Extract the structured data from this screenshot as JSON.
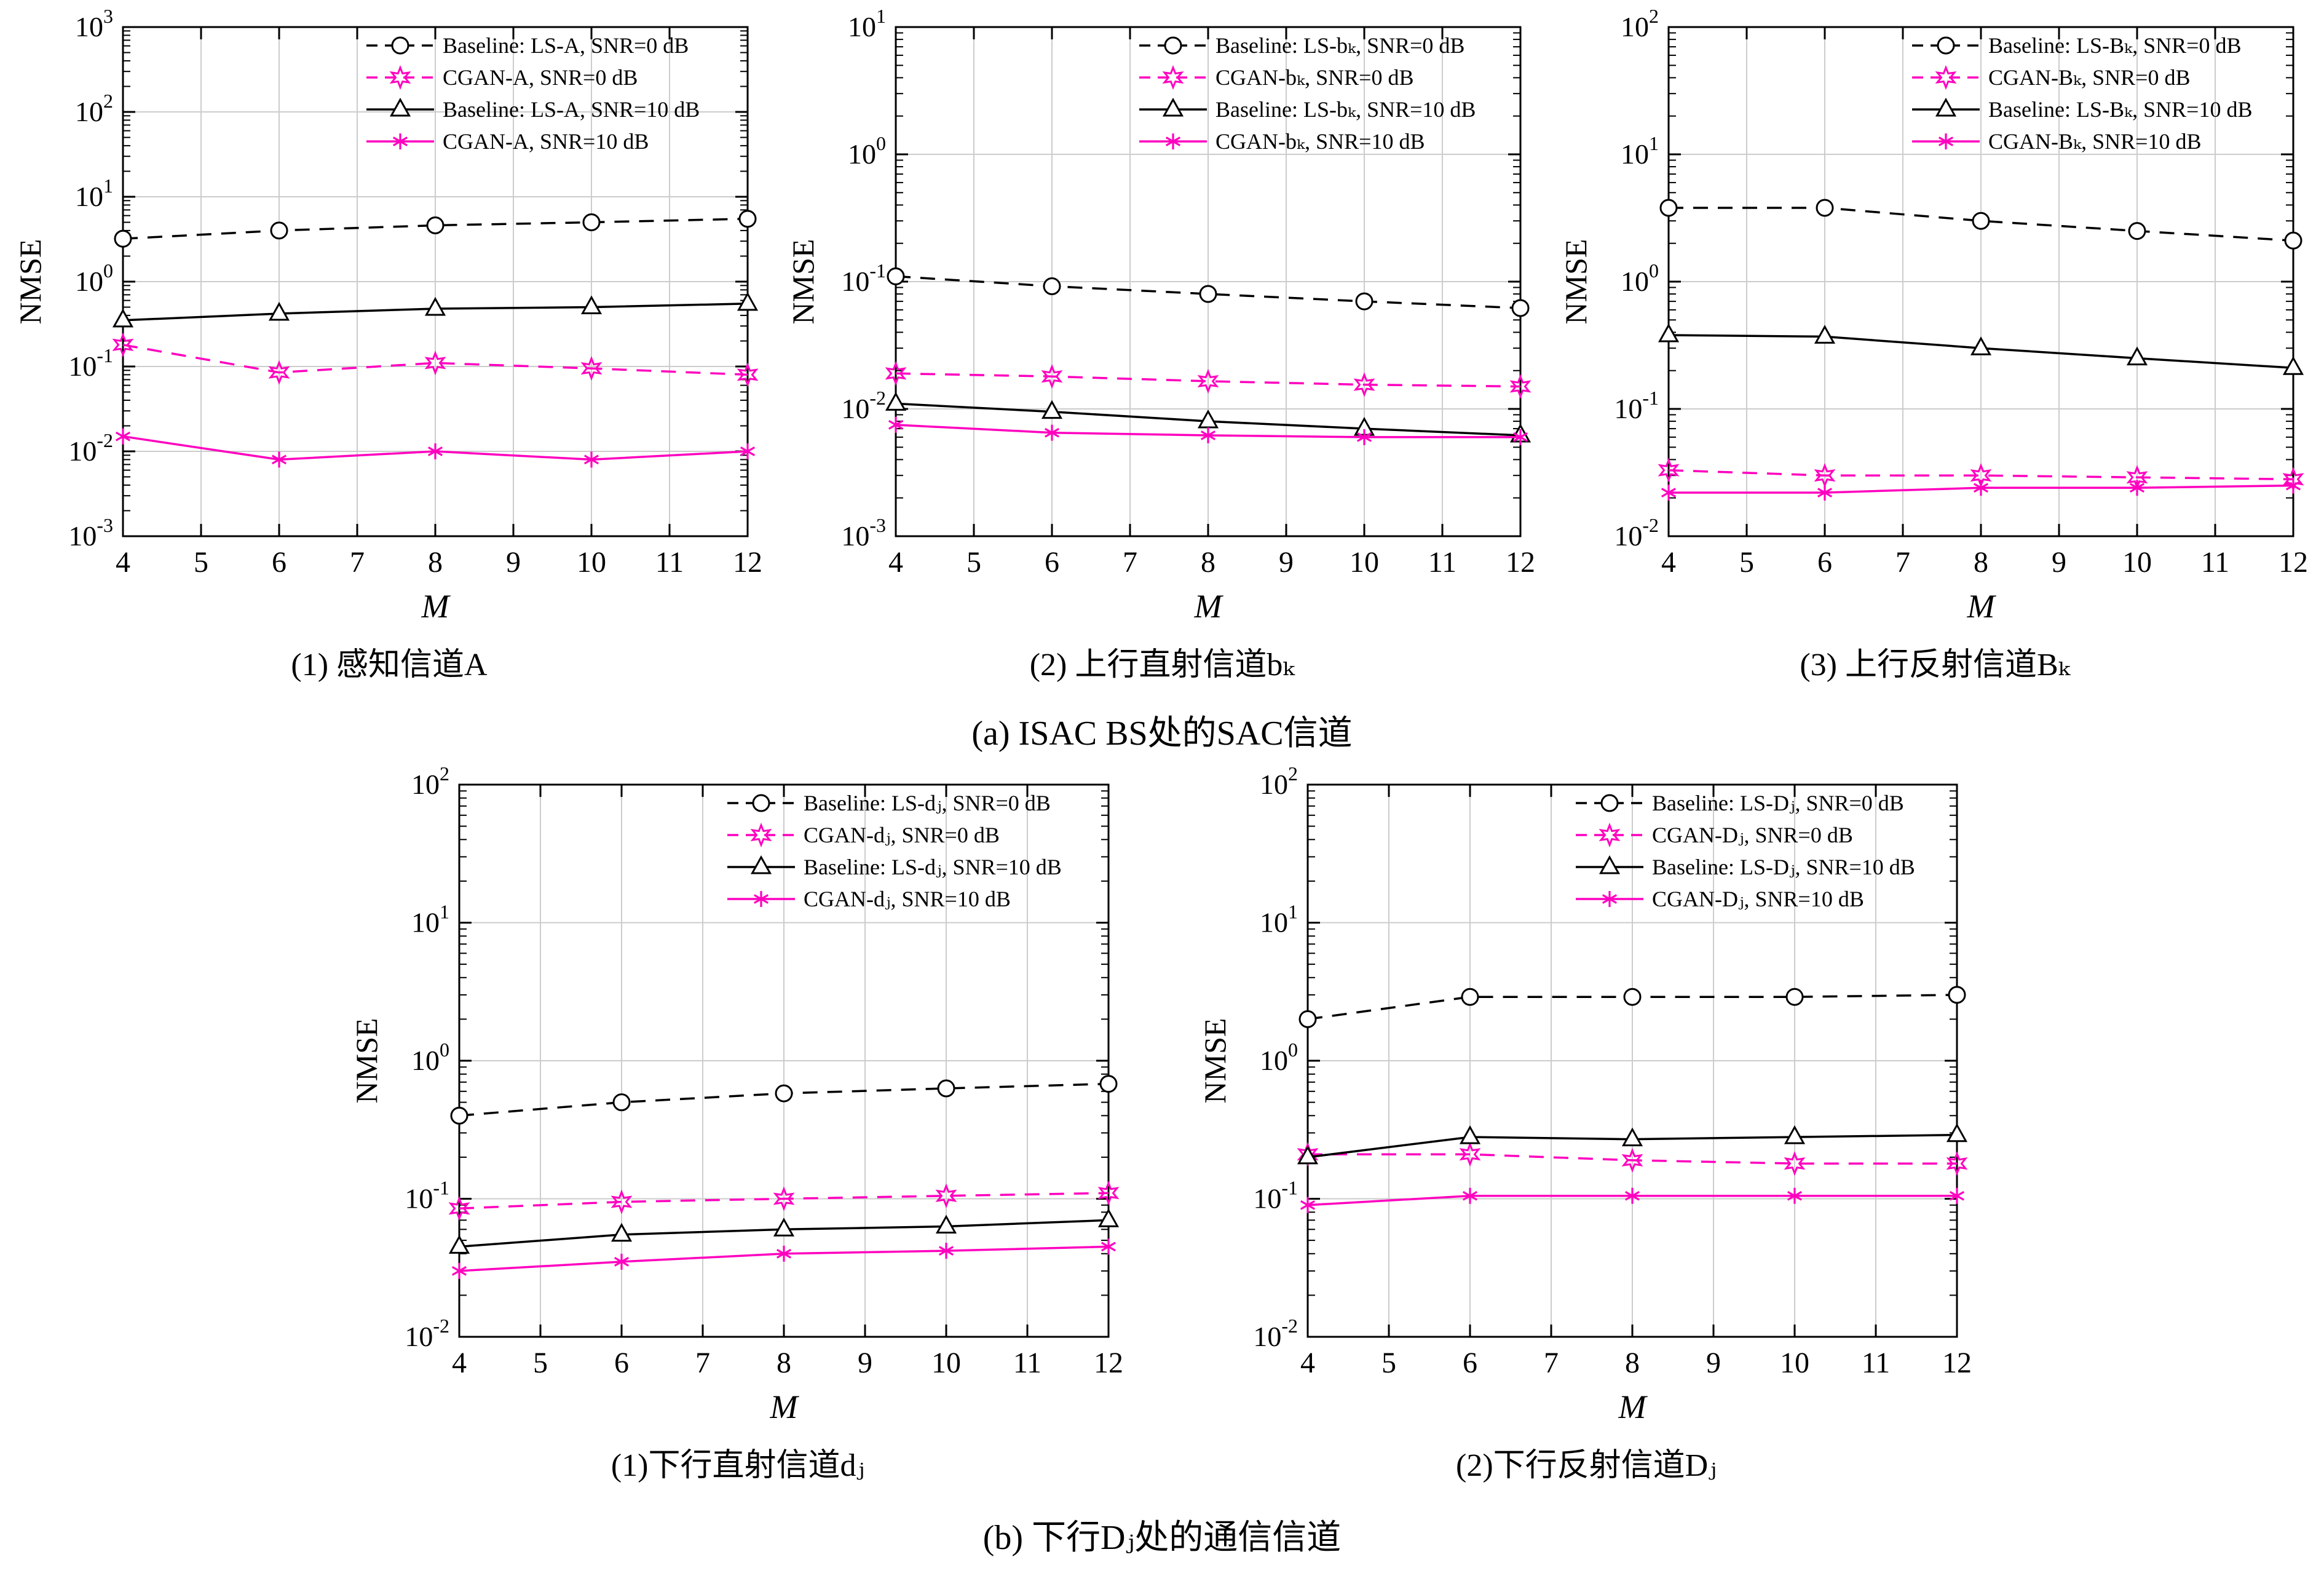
{
  "figure": {
    "caption_a": "(a) ISAC BS处的SAC信道",
    "caption_b": "(b) 下行Dⱼ处的通信信道"
  },
  "colors": {
    "baseline": "#000000",
    "cgan": "#ff00bf",
    "grid": "#cccccc"
  },
  "chart_data": [
    {
      "type": "line",
      "caption": "(1) 感知信道A",
      "xlabel": "M",
      "ylabel": "NMSE",
      "xlim": [
        4,
        12
      ],
      "xticks": [
        4,
        5,
        6,
        7,
        8,
        9,
        10,
        11,
        12
      ],
      "x": [
        4,
        6,
        8,
        10,
        12
      ],
      "yscale": "log",
      "ylim": [
        0.001,
        1000
      ],
      "ylim_exp": [
        -3,
        3
      ],
      "grid": true,
      "legend_position": "top-right",
      "series": [
        {
          "name": "Baseline: LS-A, SNR=0 dB",
          "color": "#000000",
          "dash": true,
          "marker": "circle",
          "values": [
            3.2,
            4.0,
            4.6,
            5.0,
            5.5
          ]
        },
        {
          "name": "CGAN-A, SNR=0 dB",
          "color": "#ff00bf",
          "dash": true,
          "marker": "hexstar",
          "values": [
            0.18,
            0.085,
            0.11,
            0.095,
            0.08
          ]
        },
        {
          "name": "Baseline: LS-A, SNR=10 dB",
          "color": "#000000",
          "dash": false,
          "marker": "triangle",
          "values": [
            0.35,
            0.42,
            0.48,
            0.5,
            0.55
          ]
        },
        {
          "name": "CGAN-A, SNR=10 dB",
          "color": "#ff00bf",
          "dash": false,
          "marker": "asterisk",
          "values": [
            0.015,
            0.008,
            0.01,
            0.008,
            0.01
          ]
        }
      ]
    },
    {
      "type": "line",
      "caption": "(2) 上行直射信道bₖ",
      "xlabel": "M",
      "ylabel": "NMSE",
      "xlim": [
        4,
        12
      ],
      "xticks": [
        4,
        5,
        6,
        7,
        8,
        9,
        10,
        11,
        12
      ],
      "x": [
        4,
        6,
        8,
        10,
        12
      ],
      "yscale": "log",
      "ylim": [
        0.001,
        10
      ],
      "ylim_exp": [
        -3,
        1
      ],
      "grid": true,
      "legend_position": "top-right",
      "series": [
        {
          "name": "Baseline: LS-bₖ, SNR=0 dB",
          "color": "#000000",
          "dash": true,
          "marker": "circle",
          "values": [
            0.11,
            0.092,
            0.08,
            0.07,
            0.062
          ]
        },
        {
          "name": "CGAN-bₖ, SNR=0 dB",
          "color": "#ff00bf",
          "dash": true,
          "marker": "hexstar",
          "values": [
            0.019,
            0.018,
            0.0165,
            0.0155,
            0.015
          ]
        },
        {
          "name": "Baseline: LS-bₖ, SNR=10 dB",
          "color": "#000000",
          "dash": false,
          "marker": "triangle",
          "values": [
            0.011,
            0.0095,
            0.008,
            0.007,
            0.0062
          ]
        },
        {
          "name": "CGAN-bₖ, SNR=10 dB",
          "color": "#ff00bf",
          "dash": false,
          "marker": "asterisk",
          "values": [
            0.0075,
            0.0065,
            0.0062,
            0.006,
            0.006
          ]
        }
      ]
    },
    {
      "type": "line",
      "caption": "(3) 上行反射信道Bₖ",
      "xlabel": "M",
      "ylabel": "NMSE",
      "xlim": [
        4,
        12
      ],
      "xticks": [
        4,
        5,
        6,
        7,
        8,
        9,
        10,
        11,
        12
      ],
      "x": [
        4,
        6,
        8,
        10,
        12
      ],
      "yscale": "log",
      "ylim": [
        0.01,
        100
      ],
      "ylim_exp": [
        -2,
        2
      ],
      "grid": true,
      "legend_position": "top-right",
      "series": [
        {
          "name": "Baseline: LS-Bₖ, SNR=0 dB",
          "color": "#000000",
          "dash": true,
          "marker": "circle",
          "values": [
            3.8,
            3.8,
            3.0,
            2.5,
            2.1
          ]
        },
        {
          "name": "CGAN-Bₖ, SNR=0 dB",
          "color": "#ff00bf",
          "dash": true,
          "marker": "hexstar",
          "values": [
            0.033,
            0.03,
            0.03,
            0.029,
            0.028
          ]
        },
        {
          "name": "Baseline: LS-Bₖ, SNR=10 dB",
          "color": "#000000",
          "dash": false,
          "marker": "triangle",
          "values": [
            0.38,
            0.37,
            0.3,
            0.25,
            0.21
          ]
        },
        {
          "name": "CGAN-Bₖ, SNR=10 dB",
          "color": "#ff00bf",
          "dash": false,
          "marker": "asterisk",
          "values": [
            0.022,
            0.022,
            0.024,
            0.024,
            0.025
          ]
        }
      ]
    },
    {
      "type": "line",
      "caption": "(1)下行直射信道dⱼ",
      "xlabel": "M",
      "ylabel": "NMSE",
      "xlim": [
        4,
        12
      ],
      "xticks": [
        4,
        5,
        6,
        7,
        8,
        9,
        10,
        11,
        12
      ],
      "x": [
        4,
        6,
        8,
        10,
        12
      ],
      "yscale": "log",
      "ylim": [
        0.01,
        100
      ],
      "ylim_exp": [
        -2,
        2
      ],
      "grid": true,
      "legend_position": "top-right",
      "series": [
        {
          "name": "Baseline: LS-dⱼ, SNR=0 dB",
          "color": "#000000",
          "dash": true,
          "marker": "circle",
          "values": [
            0.4,
            0.5,
            0.58,
            0.63,
            0.68
          ]
        },
        {
          "name": "CGAN-dⱼ, SNR=0 dB",
          "color": "#ff00bf",
          "dash": true,
          "marker": "hexstar",
          "values": [
            0.085,
            0.095,
            0.1,
            0.105,
            0.11
          ]
        },
        {
          "name": "Baseline: LS-dⱼ, SNR=10 dB",
          "color": "#000000",
          "dash": false,
          "marker": "triangle",
          "values": [
            0.045,
            0.055,
            0.06,
            0.063,
            0.07
          ]
        },
        {
          "name": "CGAN-dⱼ, SNR=10 dB",
          "color": "#ff00bf",
          "dash": false,
          "marker": "asterisk",
          "values": [
            0.03,
            0.035,
            0.04,
            0.042,
            0.045
          ]
        }
      ]
    },
    {
      "type": "line",
      "caption": "(2)下行反射信道Dⱼ",
      "xlabel": "M",
      "ylabel": "NMSE",
      "xlim": [
        4,
        12
      ],
      "xticks": [
        4,
        5,
        6,
        7,
        8,
        9,
        10,
        11,
        12
      ],
      "x": [
        4,
        6,
        8,
        10,
        12
      ],
      "yscale": "log",
      "ylim": [
        0.01,
        100
      ],
      "ylim_exp": [
        -2,
        2
      ],
      "grid": true,
      "legend_position": "top-right",
      "series": [
        {
          "name": "Baseline: LS-Dⱼ, SNR=0 dB",
          "color": "#000000",
          "dash": true,
          "marker": "circle",
          "values": [
            2.0,
            2.9,
            2.9,
            2.9,
            3.0
          ]
        },
        {
          "name": "CGAN-Dⱼ, SNR=0 dB",
          "color": "#ff00bf",
          "dash": true,
          "marker": "hexstar",
          "values": [
            0.21,
            0.21,
            0.19,
            0.18,
            0.18
          ]
        },
        {
          "name": "Baseline: LS-Dⱼ, SNR=10 dB",
          "color": "#000000",
          "dash": false,
          "marker": "triangle",
          "values": [
            0.2,
            0.28,
            0.27,
            0.28,
            0.29
          ]
        },
        {
          "name": "CGAN-Dⱼ, SNR=10 dB",
          "color": "#ff00bf",
          "dash": false,
          "marker": "asterisk",
          "values": [
            0.09,
            0.105,
            0.105,
            0.105,
            0.105
          ]
        }
      ]
    }
  ]
}
